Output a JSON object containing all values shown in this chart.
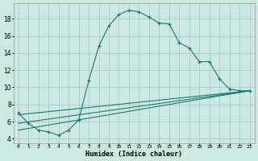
{
  "xlabel": "Humidex (Indice chaleur)",
  "background_color": "#cce8e0",
  "grid_color": "#aaccC4",
  "line_color": "#1a7a6e",
  "lines": [
    {
      "x": [
        0,
        1,
        2,
        3,
        4,
        5,
        6,
        7,
        8,
        9,
        10,
        11,
        12,
        13,
        14,
        15,
        16,
        17,
        18,
        19,
        20,
        21,
        22,
        23
      ],
      "y": [
        7.0,
        5.8,
        5.0,
        4.8,
        4.4,
        5.0,
        6.2,
        10.8,
        14.8,
        17.2,
        18.5,
        19.0,
        18.8,
        18.2,
        17.5,
        17.4,
        15.2,
        14.6,
        13.0,
        13.0,
        11.0,
        9.8,
        9.6,
        9.6
      ],
      "marker": true
    },
    {
      "x": [
        0,
        23
      ],
      "y": [
        6.8,
        9.6
      ],
      "marker": false
    },
    {
      "x": [
        0,
        23
      ],
      "y": [
        5.8,
        9.6
      ],
      "marker": false
    },
    {
      "x": [
        0,
        23
      ],
      "y": [
        5.0,
        9.6
      ],
      "marker": false
    }
  ],
  "xlim": [
    -0.5,
    23.5
  ],
  "ylim": [
    3.5,
    19.8
  ],
  "yticks": [
    4,
    6,
    8,
    10,
    12,
    14,
    16,
    18
  ],
  "xtick_labels": [
    "0",
    "1",
    "2",
    "3",
    "4",
    "5",
    "6",
    "7",
    "8",
    "9",
    "10",
    "11",
    "12",
    "13",
    "14",
    "15",
    "16",
    "17",
    "18",
    "19",
    "20",
    "21",
    "22",
    "23"
  ]
}
